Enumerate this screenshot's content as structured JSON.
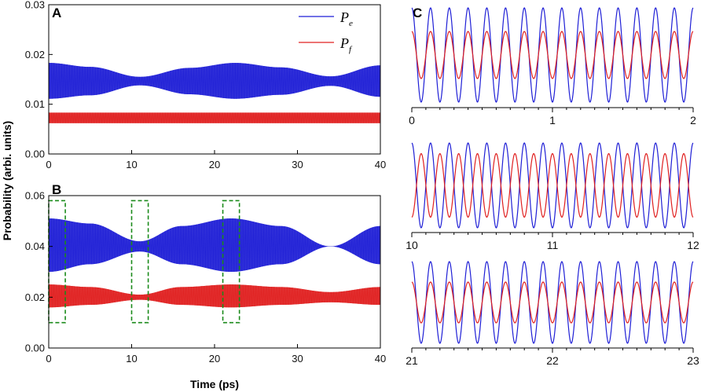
{
  "figure": {
    "xlabel": "Time (ps)",
    "ylabel": "Probability (arbi. units)"
  },
  "legend": [
    {
      "symbol": "P",
      "sub": "e",
      "color": "#1f1fd6"
    },
    {
      "symbol": "P",
      "sub": "f",
      "color": "#e02020"
    }
  ],
  "chart_data": [
    {
      "type": "line",
      "panel": "A",
      "xlim": [
        0,
        40
      ],
      "ylim": [
        0,
        0.03
      ],
      "xticks": [
        "0",
        "10",
        "20",
        "30",
        "40"
      ],
      "yticks": [
        "0.00",
        "0.01",
        "0.02",
        "0.03"
      ],
      "series": [
        {
          "name": "Pe",
          "color": "#1f1fd6",
          "center": 0.0147,
          "envelope_upper_x": [
            0,
            5,
            11,
            17,
            22.5,
            28,
            34,
            40
          ],
          "envelope_upper_y": [
            0.0183,
            0.0175,
            0.0155,
            0.0173,
            0.0183,
            0.0174,
            0.0156,
            0.0178
          ],
          "envelope_lower_y": [
            0.0111,
            0.0118,
            0.0138,
            0.012,
            0.0111,
            0.0119,
            0.0137,
            0.0115
          ]
        },
        {
          "name": "Pf",
          "color": "#e02020",
          "center": 0.0072,
          "upper": 0.0083,
          "lower": 0.0062
        }
      ]
    },
    {
      "type": "line",
      "panel": "B",
      "xlim": [
        0,
        40
      ],
      "ylim": [
        0,
        0.06
      ],
      "xticks": [
        "0",
        "10",
        "20",
        "30",
        "40"
      ],
      "yticks": [
        "0.00",
        "0.02",
        "0.04",
        "0.06"
      ],
      "series": [
        {
          "name": "Pe",
          "color": "#1f1fd6",
          "envelope_upper_x": [
            0,
            5,
            11,
            16,
            22,
            28,
            34,
            40
          ],
          "envelope_upper_y": [
            0.051,
            0.049,
            0.042,
            0.048,
            0.051,
            0.048,
            0.04,
            0.048
          ],
          "envelope_lower_y": [
            0.03,
            0.033,
            0.038,
            0.033,
            0.03,
            0.033,
            0.04,
            0.033
          ]
        },
        {
          "name": "Pf",
          "color": "#e02020",
          "envelope_upper_x": [
            0,
            5,
            11,
            16,
            22,
            28,
            34,
            40
          ],
          "envelope_upper_y": [
            0.025,
            0.024,
            0.021,
            0.024,
            0.025,
            0.024,
            0.022,
            0.024
          ],
          "envelope_lower_y": [
            0.016,
            0.017,
            0.019,
            0.017,
            0.016,
            0.017,
            0.018,
            0.017
          ]
        }
      ],
      "highlight_boxes": [
        {
          "x": [
            0,
            2
          ],
          "y": [
            0.01,
            0.058
          ]
        },
        {
          "x": [
            10,
            12
          ],
          "y": [
            0.01,
            0.058
          ]
        },
        {
          "x": [
            21,
            23
          ],
          "y": [
            0.01,
            0.058
          ]
        }
      ]
    },
    {
      "type": "line",
      "panel": "C",
      "subplots": [
        {
          "xlim": [
            0,
            2
          ],
          "xticks": [
            "0",
            "1",
            "2"
          ],
          "cycles": 15,
          "series": [
            {
              "name": "Pe",
              "color": "#1f1fd6",
              "amplitude": 1.0,
              "phase": 0
            },
            {
              "name": "Pf",
              "color": "#e02020",
              "amplitude": 0.5,
              "phase": 0
            }
          ]
        },
        {
          "xlim": [
            10,
            12
          ],
          "xticks": [
            "10",
            "11",
            "12"
          ],
          "cycles": 15,
          "series": [
            {
              "name": "Pe",
              "color": "#1f1fd6",
              "amplitude": 1.0,
              "phase": 0
            },
            {
              "name": "Pf",
              "color": "#e02020",
              "amplitude": 0.75,
              "phase": 3.1416
            }
          ]
        },
        {
          "xlim": [
            21,
            23
          ],
          "xticks": [
            "21",
            "22",
            "23"
          ],
          "cycles": 15,
          "series": [
            {
              "name": "Pe",
              "color": "#1f1fd6",
              "amplitude": 1.0,
              "phase": 0
            },
            {
              "name": "Pf",
              "color": "#e02020",
              "amplitude": 0.5,
              "phase": 0
            }
          ]
        }
      ]
    }
  ]
}
